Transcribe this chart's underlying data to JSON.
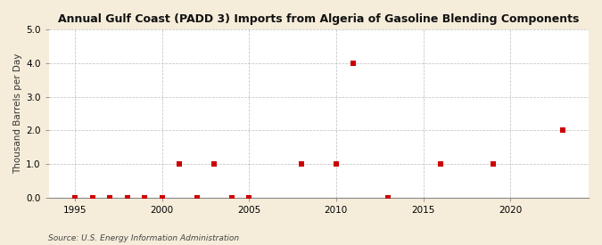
{
  "title": "Annual Gulf Coast (PADD 3) Imports from Algeria of Gasoline Blending Components",
  "ylabel": "Thousand Barrels per Day",
  "source": "Source: U.S. Energy Information Administration",
  "background_color": "#f5edda",
  "plot_bg_color": "#ffffff",
  "marker_color": "#cc0000",
  "marker_size": 18,
  "xlim": [
    1993.5,
    2024.5
  ],
  "ylim": [
    0.0,
    5.0
  ],
  "yticks": [
    0.0,
    1.0,
    2.0,
    3.0,
    4.0,
    5.0
  ],
  "xticks": [
    1995,
    2000,
    2005,
    2010,
    2015,
    2020
  ],
  "grid_color": "#aaaaaa",
  "years": [
    1995,
    1996,
    1997,
    1998,
    1999,
    2000,
    2001,
    2002,
    2003,
    2004,
    2005,
    2008,
    2010,
    2011,
    2013,
    2016,
    2019,
    2023
  ],
  "values": [
    0.0,
    0.0,
    0.0,
    0.0,
    0.0,
    0.0,
    1.0,
    0.0,
    1.0,
    0.0,
    0.0,
    1.0,
    1.0,
    4.0,
    0.0,
    1.0,
    1.0,
    2.0
  ]
}
